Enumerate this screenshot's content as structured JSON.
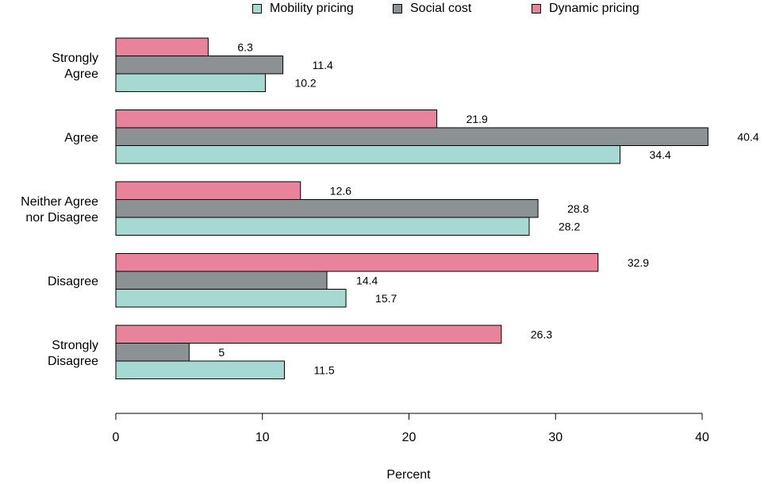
{
  "chart_data": {
    "type": "bar",
    "orientation": "horizontal",
    "title": "",
    "xlabel": "Percent",
    "ylabel": "",
    "xlim": [
      0,
      40
    ],
    "xticks": [
      0,
      10,
      20,
      30,
      40
    ],
    "grid": false,
    "legend_position": "top",
    "categories": [
      [
        "Strongly",
        "Agree"
      ],
      [
        "Agree"
      ],
      [
        "Neither Agree",
        "nor Disagree"
      ],
      [
        "Disagree"
      ],
      [
        "Strongly",
        "Disagree"
      ]
    ],
    "series": [
      {
        "name": "Dynamic pricing",
        "color": "#e8839b",
        "values": [
          6.3,
          21.9,
          12.6,
          32.9,
          26.3
        ]
      },
      {
        "name": "Social cost",
        "color": "#8c9193",
        "values": [
          11.4,
          40.4,
          28.8,
          14.4,
          5
        ]
      },
      {
        "name": "Mobility pricing",
        "color": "#a6d9d2",
        "values": [
          10.2,
          34.4,
          28.2,
          15.7,
          11.5
        ]
      }
    ],
    "legend_order": [
      "Mobility pricing",
      "Social cost",
      "Dynamic pricing"
    ]
  }
}
